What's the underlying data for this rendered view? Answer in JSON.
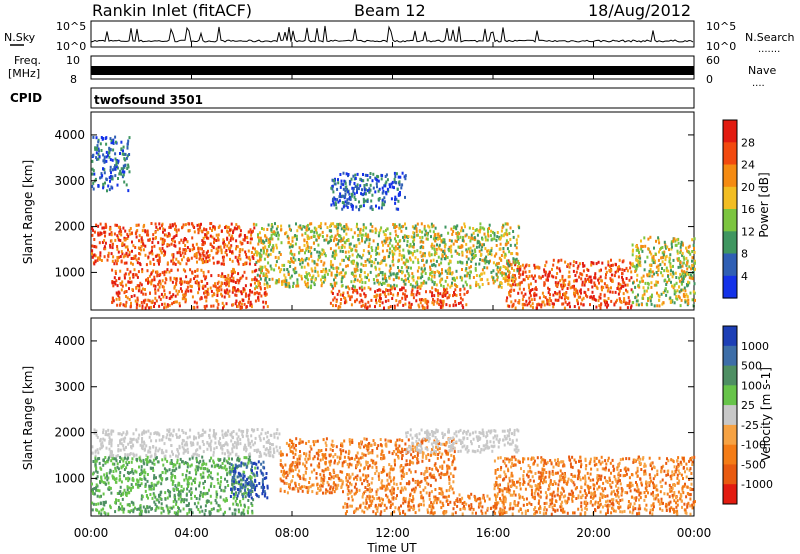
{
  "header": {
    "station": "Rankin Inlet (fitACF)",
    "beam": "Beam 12",
    "date": "18/Aug/2012"
  },
  "noise_panel": {
    "left_label": "N.Sky",
    "right_label": "N.Search",
    "left_ticks": [
      "10^5",
      "10^0"
    ],
    "right_ticks": [
      "10^5",
      "10^0"
    ],
    "dotted_marker": "......."
  },
  "freq_panel": {
    "left_label_line1": "Freq.",
    "left_label_line2": "[MHz]",
    "left_ticks": [
      "10",
      "8"
    ],
    "right_label": "Nave",
    "right_ticks": [
      "60",
      "0"
    ],
    "dotted_marker": "...."
  },
  "cpid_panel": {
    "label": "CPID",
    "program": "twofsound 3501"
  },
  "x_axis": {
    "title": "Time UT",
    "ticks": [
      "00:00",
      "04:00",
      "08:00",
      "12:00",
      "16:00",
      "20:00",
      "00:00"
    ]
  },
  "chart_data": [
    {
      "type": "heatmap",
      "name": "power",
      "ylabel": "Slant Range [km]",
      "ylim": [
        180,
        4500
      ],
      "y_ticks": [
        1000,
        2000,
        3000,
        4000
      ],
      "x_range_hours": [
        0,
        24
      ],
      "colorbar": {
        "label": "Power [dB]",
        "ticks": [
          "28",
          "24",
          "20",
          "16",
          "12",
          "8",
          "4"
        ],
        "colors": [
          "#e21b10",
          "#f24a0f",
          "#f58b12",
          "#f2bd22",
          "#7cc53f",
          "#3f9660",
          "#2f5fb4",
          "#1432e8"
        ]
      },
      "features": [
        {
          "t0": 0.0,
          "t1": 6.5,
          "r0": 1200,
          "r1": 2100,
          "level": "high"
        },
        {
          "t0": 0.8,
          "t1": 7.0,
          "r0": 250,
          "r1": 1100,
          "level": "high"
        },
        {
          "t0": 9.5,
          "t1": 15.0,
          "r0": 250,
          "r1": 700,
          "level": "high"
        },
        {
          "t0": 16.5,
          "t1": 21.5,
          "r0": 250,
          "r1": 1300,
          "level": "high"
        },
        {
          "t0": 6.5,
          "t1": 17.0,
          "r0": 700,
          "r1": 2100,
          "level": "medium"
        },
        {
          "t0": 21.5,
          "t1": 24.0,
          "r0": 300,
          "r1": 1800,
          "level": "medium"
        },
        {
          "t0": 0.0,
          "t1": 1.5,
          "r0": 2800,
          "r1": 4000,
          "level": "low"
        },
        {
          "t0": 9.5,
          "t1": 12.5,
          "r0": 2400,
          "r1": 3200,
          "level": "low"
        }
      ]
    },
    {
      "type": "heatmap",
      "name": "velocity",
      "ylabel": "Slant Range [km]",
      "ylim": [
        180,
        4500
      ],
      "y_ticks": [
        1000,
        2000,
        3000,
        4000
      ],
      "x_range_hours": [
        0,
        24
      ],
      "colorbar": {
        "label": "Velocity [m s-1]",
        "ticks": [
          "1000",
          "500",
          "100",
          "25",
          "-25",
          "-100",
          "-500",
          "-1000"
        ],
        "colors": [
          "#1d3fb6",
          "#3d6ea8",
          "#4e8f63",
          "#67c44a",
          "#c8c8c8",
          "#f6a243",
          "#f47c16",
          "#e85a10",
          "#e21b10"
        ]
      },
      "features": [
        {
          "t0": 0.0,
          "t1": 7.5,
          "r0": 1500,
          "r1": 2100,
          "level": "gray"
        },
        {
          "t0": 0.0,
          "t1": 6.5,
          "r0": 250,
          "r1": 1500,
          "level": "green"
        },
        {
          "t0": 5.5,
          "t1": 7.0,
          "r0": 600,
          "r1": 1400,
          "level": "blue"
        },
        {
          "t0": 7.5,
          "t1": 14.5,
          "r0": 700,
          "r1": 1900,
          "level": "orange"
        },
        {
          "t0": 10.0,
          "t1": 16.5,
          "r0": 250,
          "r1": 700,
          "level": "orange"
        },
        {
          "t0": 16.0,
          "t1": 24.0,
          "r0": 250,
          "r1": 1500,
          "level": "orange"
        },
        {
          "t0": 12.5,
          "t1": 17.0,
          "r0": 1600,
          "r1": 2100,
          "level": "gray"
        }
      ]
    }
  ]
}
